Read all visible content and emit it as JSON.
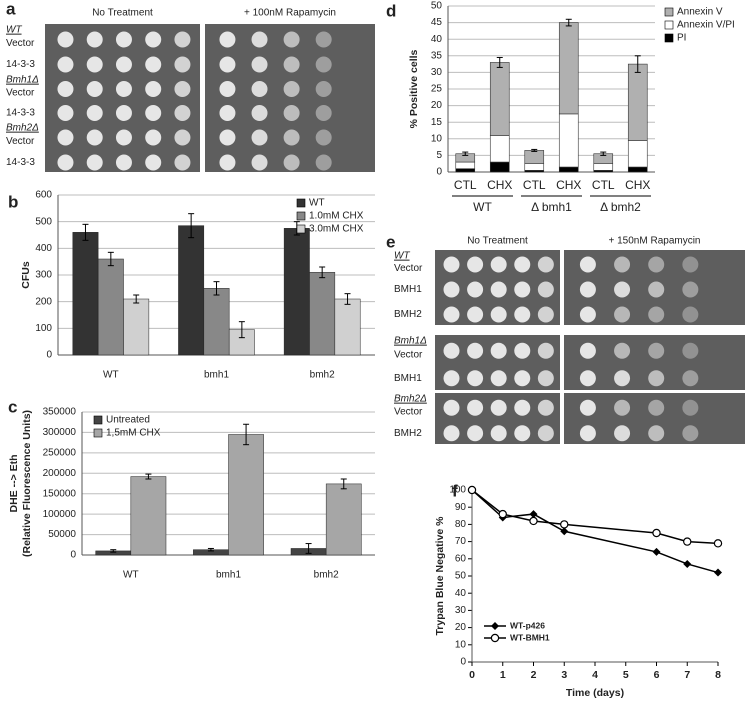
{
  "spot_assays": [
    {
      "panel": "a",
      "conditions": [
        "No Treatment",
        "+ 100nM Rapamycin"
      ],
      "groups": [
        {
          "strain": "WT",
          "rows": [
            "Vector",
            "14-3-3"
          ]
        },
        {
          "strain": "Bmh1Δ",
          "rows": [
            "Vector",
            "14-3-3"
          ]
        },
        {
          "strain": "Bmh2Δ",
          "rows": [
            "Vector",
            "14-3-3"
          ]
        }
      ]
    },
    {
      "panel": "e",
      "conditions": [
        "No Treatment",
        "+ 150nM Rapamycin"
      ],
      "groups": [
        {
          "strain": "WT",
          "rows": [
            "Vector",
            "BMH1",
            "BMH2"
          ]
        },
        {
          "strain": "Bmh1Δ",
          "rows": [
            "Vector",
            "BMH1"
          ]
        },
        {
          "strain": "Bmh2Δ",
          "rows": [
            "Vector",
            "BMH2"
          ]
        }
      ]
    }
  ],
  "chart_data": [
    {
      "panel": "b",
      "type": "bar",
      "categories": [
        "WT",
        "bmh1",
        "bmh2"
      ],
      "series": [
        {
          "name": "WT",
          "color": "#333333",
          "values": [
            460,
            485,
            475
          ],
          "errors": [
            30,
            45,
            25
          ]
        },
        {
          "name": "1.0mM CHX",
          "color": "#888888",
          "values": [
            360,
            250,
            310
          ],
          "errors": [
            25,
            25,
            20
          ]
        },
        {
          "name": "3.0mM CHX",
          "color": "#d0d0d0",
          "values": [
            210,
            95,
            210
          ],
          "errors": [
            15,
            30,
            20
          ]
        }
      ],
      "ylim": [
        0,
        600
      ],
      "yticks": [
        0,
        100,
        200,
        300,
        400,
        500,
        600
      ],
      "ylabel": [
        "CFUs"
      ],
      "grid": true,
      "legend": "upper right"
    },
    {
      "panel": "c",
      "type": "bar",
      "categories": [
        "WT",
        "bmh1",
        "bmh2"
      ],
      "series": [
        {
          "name": "Untreated",
          "color": "#444444",
          "values": [
            10000,
            13000,
            16000
          ],
          "errors": [
            3000,
            3000,
            12000
          ]
        },
        {
          "name": "1,5mM CHX",
          "color": "#a6a6a6",
          "values": [
            192000,
            295000,
            174000
          ],
          "errors": [
            6000,
            25000,
            12000
          ]
        }
      ],
      "ylim": [
        0,
        350000
      ],
      "yticks": [
        0,
        50000,
        100000,
        150000,
        200000,
        250000,
        300000,
        350000
      ],
      "ylabel": [
        "DHE --> Eth",
        "(Relative Fluorescence Units)"
      ],
      "grid": true,
      "legend": "upper left"
    },
    {
      "panel": "d",
      "type": "stacked_bar",
      "categories": [
        "CTL",
        "CHX",
        "CTL",
        "CHX",
        "CTL",
        "CHX"
      ],
      "groups": [
        "WT",
        "Δ bmh1",
        "Δ bmh2"
      ],
      "series": [
        {
          "name": "PI",
          "color": "#000000",
          "values": [
            1,
            3,
            0.5,
            1.5,
            0.5,
            1.5
          ]
        },
        {
          "name": "Annexin V/PI",
          "color": "#ffffff",
          "values": [
            2,
            8,
            2,
            16,
            2,
            8
          ]
        },
        {
          "name": "Annexin V",
          "color": "#b0b0b0",
          "values": [
            2.5,
            22,
            4,
            27.5,
            3,
            23
          ],
          "errors": [
            0.5,
            1.5,
            0.3,
            1,
            0.5,
            2.5
          ]
        }
      ],
      "ylim": [
        0,
        50
      ],
      "yticks": [
        0,
        5,
        10,
        15,
        20,
        25,
        30,
        35,
        40,
        45,
        50
      ],
      "ylabel": [
        "% Positive cells"
      ],
      "grid": true,
      "legend": "right"
    },
    {
      "panel": "f",
      "type": "line",
      "x": [
        0,
        1,
        2,
        3,
        6,
        7,
        8
      ],
      "series": [
        {
          "name": "WT-p426",
          "color": "#000000",
          "marker": "diamond",
          "values": [
            100,
            84,
            86,
            76,
            64,
            57,
            52
          ]
        },
        {
          "name": "WT-BMH1",
          "color": "#000000",
          "marker": "circle-open",
          "values": [
            100,
            86,
            82,
            80,
            75,
            70,
            69
          ]
        }
      ],
      "xlim": [
        0,
        8
      ],
      "xticks": [
        0,
        1,
        2,
        3,
        4,
        5,
        6,
        7,
        8
      ],
      "ylim": [
        0,
        100
      ],
      "yticks": [
        0,
        10,
        20,
        30,
        40,
        50,
        60,
        70,
        80,
        90,
        100
      ],
      "xlabel": "Time (days)",
      "ylabel": [
        "Trypan Blue Negative %"
      ],
      "grid": false,
      "legend": "lower left"
    }
  ]
}
